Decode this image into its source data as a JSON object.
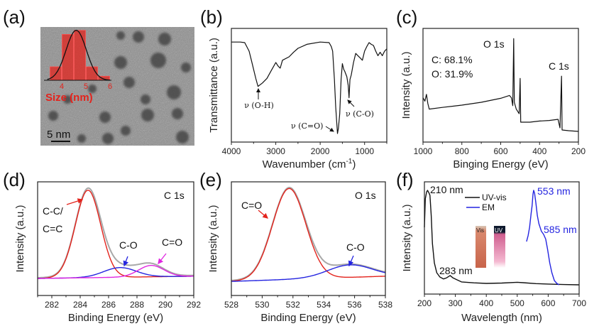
{
  "panel_labels": [
    "(a)",
    "(b)",
    "(c)",
    "(d)",
    "(e)",
    "(f)"
  ],
  "colors": {
    "red": "#e3231c",
    "blue": "#2424e0",
    "magenta": "#e026e0",
    "envelope": "#a8a8a8",
    "black": "#111111"
  },
  "chart_data": [
    {
      "type": "bar",
      "panel": "a",
      "background": "TEM image",
      "scale_bar": "5 nm",
      "xlabel": "Size (nm)",
      "xticks": [
        "4",
        "5",
        "6"
      ],
      "xlim": [
        3.5,
        6.0
      ],
      "bins": [
        3.75,
        4.25,
        4.75,
        5.25,
        5.75
      ],
      "values": [
        10,
        34,
        37,
        10,
        3
      ],
      "fit": {
        "type": "gaussian",
        "center": 4.6,
        "sigma": 0.42,
        "peak": 37
      }
    },
    {
      "type": "line",
      "panel": "b",
      "xlabel": "Wavenumber (cm",
      "xlabel_sup": "-1",
      "xlabel_tail": ")",
      "ylabel": "Transmittance (a.u.)",
      "xlim": [
        4000,
        500
      ],
      "ylim": [
        0,
        100
      ],
      "xticks": [
        "4000",
        "3000",
        "2000",
        "1000"
      ],
      "annotations": [
        "ν (O-H)",
        "ν (C=O)",
        "ν (C-O)"
      ],
      "points": [
        [
          4000,
          88
        ],
        [
          3800,
          88
        ],
        [
          3700,
          87.5
        ],
        [
          3600,
          80
        ],
        [
          3550,
          72
        ],
        [
          3450,
          56
        ],
        [
          3400,
          49
        ],
        [
          3300,
          52
        ],
        [
          3200,
          56
        ],
        [
          3100,
          63
        ],
        [
          3000,
          70
        ],
        [
          2950,
          67
        ],
        [
          2900,
          65
        ],
        [
          2850,
          72
        ],
        [
          2700,
          75
        ],
        [
          2600,
          79
        ],
        [
          2500,
          82.5
        ],
        [
          2300,
          86
        ],
        [
          2000,
          88
        ],
        [
          1800,
          87.5
        ],
        [
          1750,
          84
        ],
        [
          1720,
          80
        ],
        [
          1680,
          55
        ],
        [
          1650,
          31
        ],
        [
          1610,
          7.5
        ],
        [
          1590,
          12
        ],
        [
          1560,
          25
        ],
        [
          1530,
          55
        ],
        [
          1500,
          69
        ],
        [
          1470,
          64
        ],
        [
          1450,
          62.5
        ],
        [
          1400,
          57.5
        ],
        [
          1370,
          50
        ],
        [
          1350,
          39
        ],
        [
          1330,
          55
        ],
        [
          1300,
          59
        ],
        [
          1250,
          70
        ],
        [
          1200,
          78
        ],
        [
          1150,
          76
        ],
        [
          1100,
          74
        ],
        [
          1050,
          72
        ],
        [
          1000,
          80
        ],
        [
          950,
          84
        ],
        [
          900,
          87.5
        ],
        [
          850,
          86
        ],
        [
          800,
          85
        ],
        [
          750,
          80
        ],
        [
          700,
          76
        ],
        [
          650,
          79
        ],
        [
          600,
          76
        ],
        [
          550,
          80
        ],
        [
          500,
          82
        ]
      ]
    },
    {
      "type": "line",
      "panel": "c",
      "xlabel": "Binging Energy (eV)",
      "ylabel": "Intensity (a.u.)",
      "xlim": [
        1000,
        200
      ],
      "ylim": [
        0,
        100
      ],
      "xticks": [
        "1000",
        "800",
        "600",
        "400",
        "200"
      ],
      "annotations": [
        "O 1s",
        "C: 68.1%",
        "O: 31.9%",
        "C 1s"
      ],
      "points": [
        [
          1000,
          39
        ],
        [
          990,
          36
        ],
        [
          982,
          42
        ],
        [
          975,
          34
        ],
        [
          968,
          29
        ],
        [
          900,
          30.5
        ],
        [
          800,
          32.5
        ],
        [
          700,
          35
        ],
        [
          600,
          38.5
        ],
        [
          555,
          41
        ],
        [
          545,
          39
        ],
        [
          538,
          32
        ],
        [
          533,
          91
        ],
        [
          530,
          35
        ],
        [
          520,
          29
        ],
        [
          505,
          25
        ],
        [
          500,
          56
        ],
        [
          497,
          17.5
        ],
        [
          450,
          17.5
        ],
        [
          400,
          18.5
        ],
        [
          350,
          19
        ],
        [
          305,
          20
        ],
        [
          295,
          12.5
        ],
        [
          287,
          58
        ],
        [
          284,
          10.6
        ],
        [
          250,
          10
        ],
        [
          200,
          9.4
        ]
      ]
    },
    {
      "type": "line",
      "panel": "d",
      "xlabel": "Binding Energy (eV)",
      "ylabel": "Intensity (a.u.)",
      "xlim": [
        281,
        292
      ],
      "ylim": [
        0,
        100
      ],
      "xticks": [
        "282",
        "284",
        "286",
        "288",
        "290",
        "292"
      ],
      "title": "C 1s",
      "baseline": [
        15,
        17
      ],
      "components": [
        {
          "name": "C-C/ C=C",
          "center": 284.55,
          "height": 77,
          "fwhm": 2.1,
          "color": "#e3231c"
        },
        {
          "name": "C-O",
          "center": 286.8,
          "height": 8.5,
          "fwhm": 2.7,
          "color": "#2424e0"
        },
        {
          "name": "C=O",
          "center": 289.0,
          "height": 10,
          "fwhm": 2.1,
          "color": "#e026e0"
        }
      ],
      "annotations": [
        "C-C/",
        "C=C",
        "C-O",
        "C=O"
      ]
    },
    {
      "type": "line",
      "panel": "e",
      "xlabel": "Binding Energy (eV)",
      "ylabel": "Intensity (a.u.)",
      "xlim": [
        528,
        538
      ],
      "ylim": [
        0,
        100
      ],
      "xticks": [
        "528",
        "530",
        "532",
        "534",
        "536",
        "538"
      ],
      "title": "O 1s",
      "baseline": [
        12.4,
        17
      ],
      "components": [
        {
          "name": "C=O",
          "center": 531.75,
          "height": 80,
          "fwhm": 2.55,
          "color": "#e3231c"
        },
        {
          "name": "C-O",
          "center": 535.7,
          "height": 11,
          "fwhm": 3.4,
          "color": "#2424e0"
        }
      ],
      "annotations": [
        "C=O",
        "C-O"
      ]
    },
    {
      "type": "line",
      "panel": "f",
      "xlabel": "Wavelength (nm)",
      "ylabel": "Intensity (a.u.)",
      "xlim": [
        200,
        700
      ],
      "ylim": [
        0,
        100
      ],
      "xticks": [
        "200",
        "300",
        "400",
        "500",
        "600",
        "700"
      ],
      "annotations": [
        "210 nm",
        "283 nm",
        "553 nm",
        "585 nm"
      ],
      "inset_labels": [
        "Vis",
        "UV"
      ],
      "series": [
        {
          "name": "UV-vis",
          "color": "#111111",
          "points": [
            [
              200,
              59.5
            ],
            [
              203,
              85
            ],
            [
              207,
              91
            ],
            [
              210,
              92.4
            ],
            [
              215,
              90
            ],
            [
              218,
              88
            ],
            [
              222,
              70
            ],
            [
              226,
              45
            ],
            [
              232,
              27.8
            ],
            [
              240,
              19
            ],
            [
              250,
              15.2
            ],
            [
              262,
              13.5
            ],
            [
              272,
              14.5
            ],
            [
              283,
              16.5
            ],
            [
              292,
              14.5
            ],
            [
              305,
              12.7
            ],
            [
              320,
              10.8
            ],
            [
              360,
              10
            ],
            [
              400,
              9.5
            ],
            [
              450,
              9.8
            ],
            [
              500,
              10.5
            ],
            [
              520,
              10.1
            ],
            [
              560,
              9.3
            ],
            [
              600,
              8.9
            ],
            [
              650,
              8.5
            ],
            [
              700,
              8.2
            ]
          ]
        },
        {
          "name": "EM",
          "color": "#2424e0",
          "points": [
            [
              530,
              46.8
            ],
            [
              535,
              52
            ],
            [
              540,
              59.5
            ],
            [
              545,
              72
            ],
            [
              548,
              78.5
            ],
            [
              551,
              89
            ],
            [
              553,
              92.4
            ],
            [
              556,
              90
            ],
            [
              560,
              81.6
            ],
            [
              565,
              70
            ],
            [
              570,
              62.7
            ],
            [
              578,
              56
            ],
            [
              585,
              53.2
            ],
            [
              592,
              49
            ],
            [
              598,
              40
            ],
            [
              605,
              27.8
            ],
            [
              612,
              19
            ],
            [
              620,
              12
            ],
            [
              628,
              9.5
            ],
            [
              635,
              8.2
            ]
          ]
        }
      ]
    }
  ]
}
